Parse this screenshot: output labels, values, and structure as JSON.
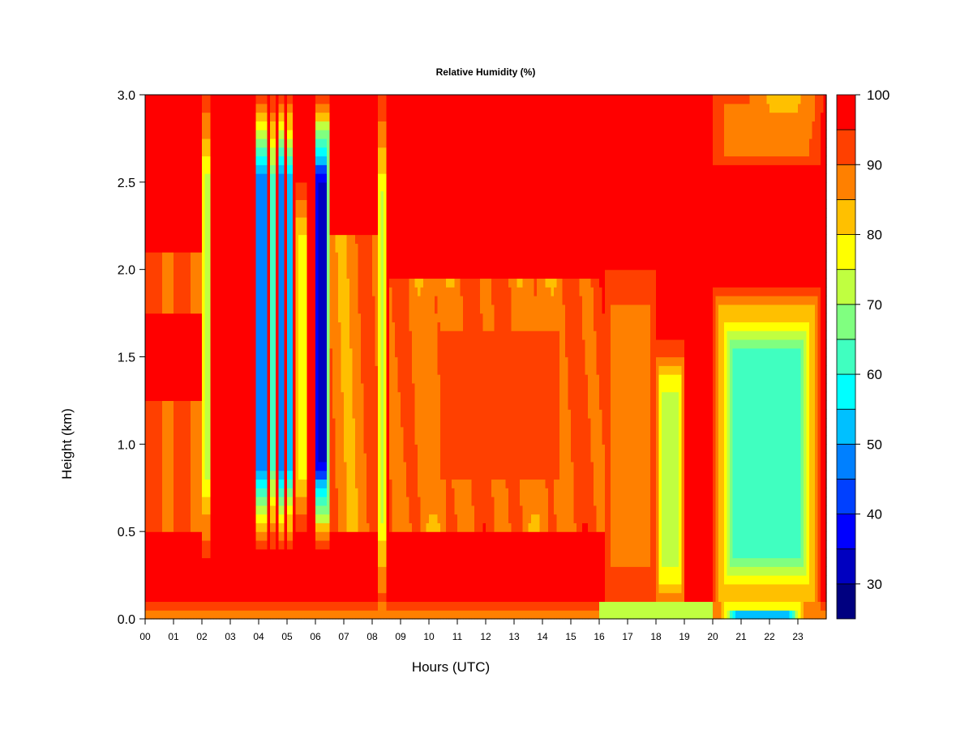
{
  "chart_data": {
    "type": "heatmap",
    "title": "Relative Humidity (%)",
    "xlabel": "Hours (UTC)",
    "ylabel": "Height (km)",
    "xlim": [
      0,
      24
    ],
    "ylim": [
      0,
      3
    ],
    "x_ticks": [
      {
        "value": 0,
        "label": "00"
      },
      {
        "value": 1,
        "label": "01"
      },
      {
        "value": 2,
        "label": "02"
      },
      {
        "value": 3,
        "label": "03"
      },
      {
        "value": 4,
        "label": "04"
      },
      {
        "value": 5,
        "label": "05"
      },
      {
        "value": 6,
        "label": "06"
      },
      {
        "value": 7,
        "label": "07"
      },
      {
        "value": 8,
        "label": "08"
      },
      {
        "value": 9,
        "label": "09"
      },
      {
        "value": 10,
        "label": "10"
      },
      {
        "value": 11,
        "label": "11"
      },
      {
        "value": 12,
        "label": "12"
      },
      {
        "value": 13,
        "label": "13"
      },
      {
        "value": 14,
        "label": "14"
      },
      {
        "value": 15,
        "label": "15"
      },
      {
        "value": 16,
        "label": "16"
      },
      {
        "value": 17,
        "label": "17"
      },
      {
        "value": 18,
        "label": "18"
      },
      {
        "value": 19,
        "label": "19"
      },
      {
        "value": 20,
        "label": "20"
      },
      {
        "value": 21,
        "label": "21"
      },
      {
        "value": 22,
        "label": "22"
      },
      {
        "value": 23,
        "label": "23"
      }
    ],
    "y_ticks": [
      {
        "value": 0.0,
        "label": "0.0"
      },
      {
        "value": 0.5,
        "label": "0.5"
      },
      {
        "value": 1.0,
        "label": "1.0"
      },
      {
        "value": 1.5,
        "label": "1.5"
      },
      {
        "value": 2.0,
        "label": "2.0"
      },
      {
        "value": 2.5,
        "label": "2.5"
      },
      {
        "value": 3.0,
        "label": "3.0"
      }
    ],
    "colorbar": {
      "min": 25,
      "max": 100,
      "levels": [
        25,
        30,
        35,
        40,
        45,
        50,
        55,
        60,
        65,
        70,
        75,
        80,
        85,
        90,
        95,
        100
      ],
      "colors": [
        "#000080",
        "#0000c0",
        "#0000ff",
        "#0040ff",
        "#0080ff",
        "#00c0ff",
        "#00ffff",
        "#40ffc0",
        "#80ff80",
        "#c0ff40",
        "#ffff00",
        "#ffc000",
        "#ff8000",
        "#ff4000",
        "#ff0000",
        "#c00000",
        "#800000"
      ],
      "tick_labels": [
        {
          "value": 30,
          "label": "30"
        },
        {
          "value": 40,
          "label": "40"
        },
        {
          "value": 50,
          "label": "50"
        },
        {
          "value": 60,
          "label": "60"
        },
        {
          "value": 70,
          "label": "70"
        },
        {
          "value": 80,
          "label": "80"
        },
        {
          "value": 90,
          "label": "90"
        },
        {
          "value": 100,
          "label": "100"
        }
      ]
    },
    "features": [
      {
        "kind": "band",
        "x": [
          2.0,
          2.35
        ],
        "y": [
          0.35,
          3.0
        ],
        "rh": 72
      },
      {
        "kind": "band",
        "x": [
          3.85,
          4.35
        ],
        "y": [
          0.4,
          3.0
        ],
        "rh": 45
      },
      {
        "kind": "band",
        "x": [
          4.35,
          4.65
        ],
        "y": [
          0.4,
          3.0
        ],
        "rh": 62
      },
      {
        "kind": "band",
        "x": [
          4.65,
          4.95
        ],
        "y": [
          0.4,
          3.0
        ],
        "rh": 45
      },
      {
        "kind": "band",
        "x": [
          4.95,
          5.25
        ],
        "y": [
          0.4,
          3.0
        ],
        "rh": 50
      },
      {
        "kind": "band",
        "x": [
          5.3,
          5.75
        ],
        "y": [
          0.5,
          2.5
        ],
        "rh": 75
      },
      {
        "kind": "band",
        "x": [
          5.95,
          6.5
        ],
        "y": [
          0.4,
          3.0
        ],
        "rh": 33
      },
      {
        "kind": "band",
        "x": [
          8.2,
          8.5
        ],
        "y": [
          0.0,
          3.0
        ],
        "rh": 74
      },
      {
        "kind": "region",
        "x": [
          9.0,
          16.0
        ],
        "y": [
          0.5,
          1.95
        ],
        "rh": 90
      },
      {
        "kind": "region",
        "x": [
          16.2,
          18.0
        ],
        "y": [
          0.1,
          2.0
        ],
        "rh": 85
      },
      {
        "kind": "region",
        "x": [
          18.0,
          19.0
        ],
        "y": [
          0.0,
          1.6
        ],
        "rh": 73
      },
      {
        "kind": "region",
        "x": [
          20.0,
          23.8
        ],
        "y": [
          0.0,
          1.9
        ],
        "rh": 62
      },
      {
        "kind": "region",
        "x": [
          20.3,
          23.2
        ],
        "y": [
          0.0,
          0.08
        ],
        "rh": 50
      },
      {
        "kind": "region",
        "x": [
          20.0,
          23.8
        ],
        "y": [
          2.6,
          3.0
        ],
        "rh": 85
      }
    ]
  }
}
